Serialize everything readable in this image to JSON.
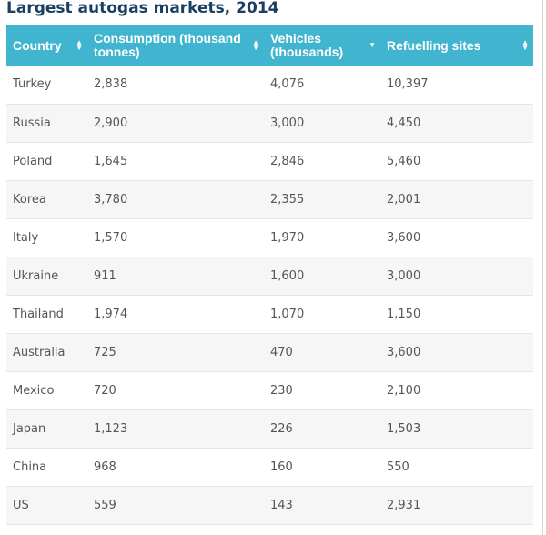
{
  "title": "Largest autogas markets, 2014",
  "table": {
    "headers": [
      {
        "label": "Country",
        "sort_icon": "sort-both-icon"
      },
      {
        "label": "Consumption (thousand tonnes)",
        "sort_icon": "sort-both-icon"
      },
      {
        "label": "Vehicles (thousands)",
        "sort_icon": "sort-desc-icon"
      },
      {
        "label": "Refuelling sites",
        "sort_icon": "sort-both-icon"
      }
    ],
    "rows": [
      [
        "Turkey",
        "2,838",
        "4,076",
        "10,397"
      ],
      [
        "Russia",
        "2,900",
        "3,000",
        "4,450"
      ],
      [
        "Poland",
        "1,645",
        "2,846",
        "5,460"
      ],
      [
        "Korea",
        "3,780",
        "2,355",
        "2,001"
      ],
      [
        "Italy",
        "1,570",
        "1,970",
        "3,600"
      ],
      [
        "Ukraine",
        "911",
        "1,600",
        "3,000"
      ],
      [
        "Thailand",
        "1,974",
        "1,070",
        "1,150"
      ],
      [
        "Australia",
        "725",
        "470",
        "3,600"
      ],
      [
        "Mexico",
        "720",
        "230",
        "2,100"
      ],
      [
        "Japan",
        "1,123",
        "226",
        "1,503"
      ],
      [
        "China",
        "968",
        "160",
        "550"
      ],
      [
        "US",
        "559",
        "143",
        "2,931"
      ]
    ]
  },
  "colors": {
    "header_bg": "#41b5cf",
    "title": "#1b3f63",
    "row_alt": "#f6f6f6"
  }
}
